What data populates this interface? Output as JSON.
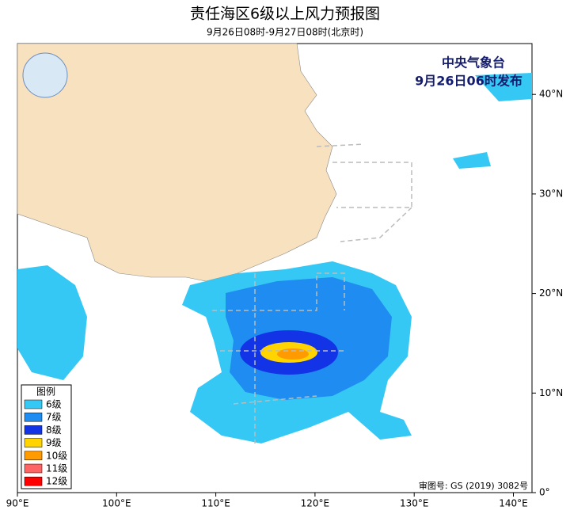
{
  "header": {
    "title": "责任海区6级以上风力预报图",
    "subtitle": "9月26日08时-9月27日08时(北京时)"
  },
  "map": {
    "agency": "中央气象台",
    "issued": "9月26日06时发布",
    "approval": "审图号: GS (2019) 3082号",
    "lon_ticks": [
      "90°E",
      "100°E",
      "110°E",
      "120°E",
      "130°E",
      "140°E"
    ],
    "lat_ticks": [
      "0°",
      "10°N",
      "20°N",
      "30°N",
      "40°N"
    ]
  },
  "legend": {
    "title": "图例",
    "items": [
      {
        "label": "6级",
        "color": "#36c8f4"
      },
      {
        "label": "7级",
        "color": "#1e8cf0"
      },
      {
        "label": "8级",
        "color": "#1234e6"
      },
      {
        "label": "9级",
        "color": "#ffd400"
      },
      {
        "label": "10级",
        "color": "#ff9a00"
      },
      {
        "label": "11级",
        "color": "#ff6464"
      },
      {
        "label": "12级",
        "color": "#ff0000"
      }
    ]
  }
}
